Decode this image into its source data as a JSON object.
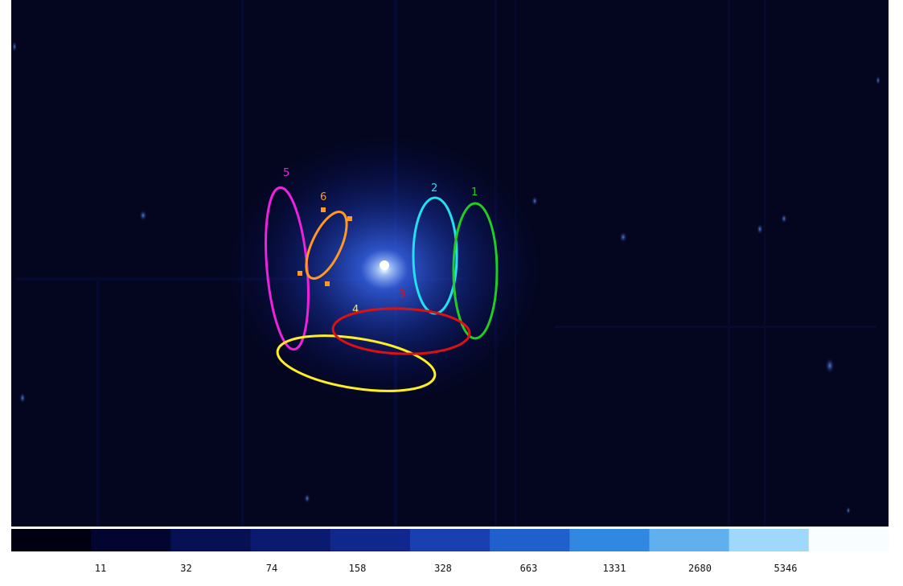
{
  "image_viewer": {
    "background_color": "#04061f",
    "source_glow_color": "#3a6cff"
  },
  "regions": [
    {
      "label": "1",
      "shape": "ellipse",
      "color": "#22cc22"
    },
    {
      "label": "2",
      "shape": "ellipse",
      "color": "#22e0ee"
    },
    {
      "label": "3",
      "shape": "ellipse",
      "color": "#dd1111"
    },
    {
      "label": "4",
      "shape": "ellipse",
      "color": "#ffee22"
    },
    {
      "label": "5",
      "shape": "ellipse",
      "color": "#ee22dd"
    },
    {
      "label": "6",
      "shape": "ellipse",
      "color": "#ff9922",
      "selected": true
    }
  ],
  "colorbar": {
    "scale": "log",
    "tick_labels": [
      "11",
      "32",
      "74",
      "158",
      "328",
      "663",
      "1331",
      "2680",
      "5346"
    ],
    "colors": [
      "#000010",
      "#020530",
      "#061052",
      "#0a1a70",
      "#10288e",
      "#1840b0",
      "#2060cc",
      "#3088e0",
      "#60b0f0",
      "#a0d8fb",
      "#f8fdff"
    ]
  }
}
